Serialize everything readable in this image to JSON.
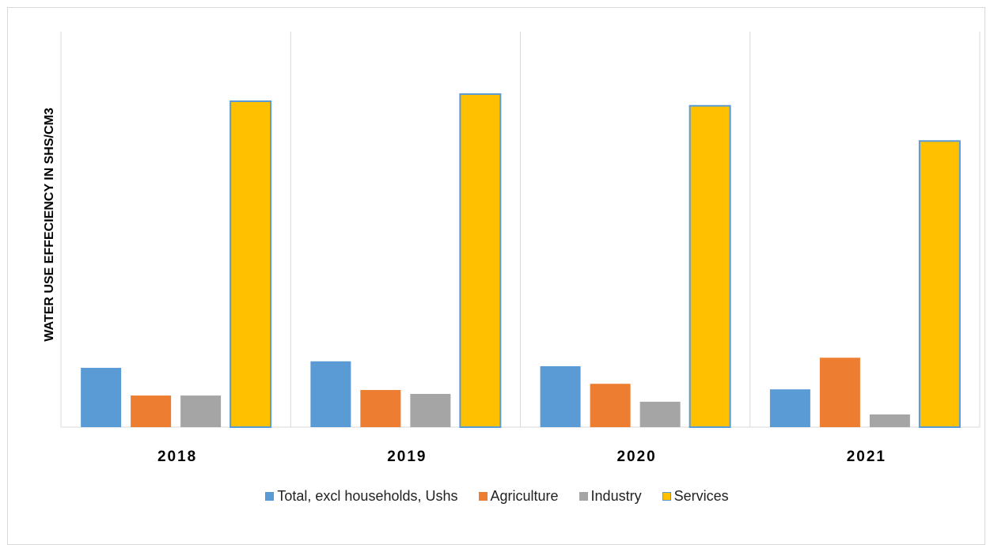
{
  "chart_data": {
    "type": "bar",
    "title": "",
    "xlabel": "",
    "ylabel": "WATER USE EFFECIENCY IN SHS/CM3",
    "categories": [
      "2018",
      "2019",
      "2020",
      "2021"
    ],
    "ylim": [
      0,
      100
    ],
    "grid": false,
    "legend_position": "bottom",
    "series": [
      {
        "name": "Total, excl households, Ushs",
        "color": "#5b9bd5",
        "values": [
          18.2,
          20.2,
          18.7,
          11.6
        ]
      },
      {
        "name": "Agriculture",
        "color": "#ed7d31",
        "values": [
          9.7,
          11.4,
          13.3,
          21.3
        ]
      },
      {
        "name": "Industry",
        "color": "#a5a5a5",
        "values": [
          9.7,
          10.2,
          7.8,
          3.9
        ]
      },
      {
        "name": "Services",
        "color": "#ffc000",
        "outline": "#5b9bd5",
        "values": [
          100.0,
          102.2,
          98.6,
          87.8
        ]
      }
    ]
  }
}
